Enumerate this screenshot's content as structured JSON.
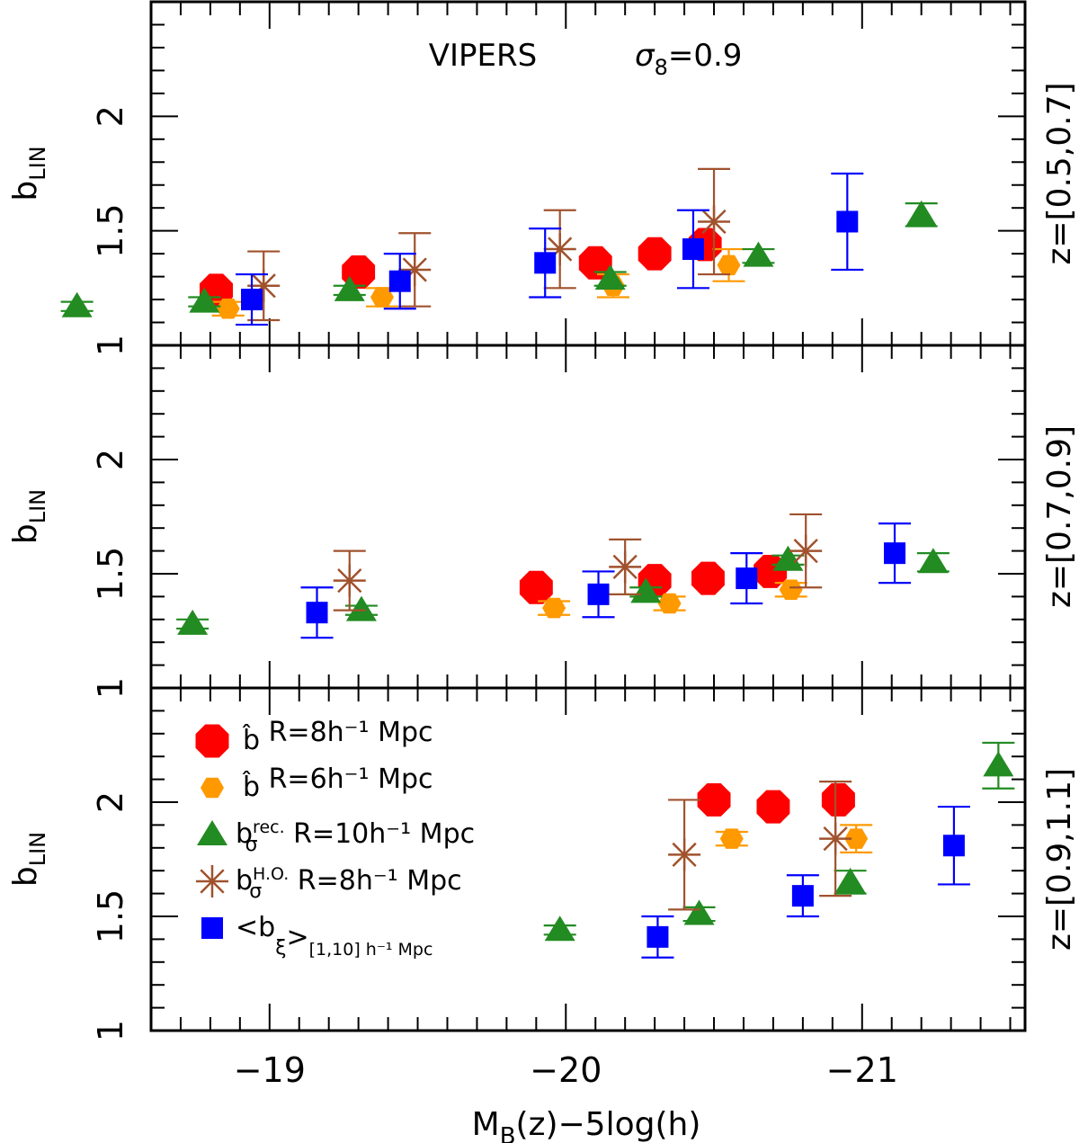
{
  "chart_data": {
    "type": "scatter",
    "title": "VIPERS",
    "annotation": {
      "symbol": "σ",
      "subscript": "8",
      "text": "=0.9"
    },
    "xlabel": {
      "main": "M",
      "sub": "B",
      "rest": "(z)−5log(h)"
    },
    "ylabel": {
      "main": "b",
      "sub": "LIN"
    },
    "xlim": [
      -18.6,
      -21.55
    ],
    "x_ticks": [
      -19,
      -20,
      -21
    ],
    "x_tick_labels": [
      "−19",
      "−20",
      "−21"
    ],
    "ylim": [
      1.0,
      2.5
    ],
    "y_ticks": [
      1,
      1.5,
      2
    ],
    "y_tick_labels": [
      "1",
      "1.5",
      "2"
    ],
    "legend": [
      {
        "series": "bhat8",
        "base": "b̂",
        "sup": "",
        "sub": "",
        "rest": "  R=8h⁻¹ Mpc",
        "tail": ""
      },
      {
        "series": "bhat6",
        "base": "b̂",
        "sup": "",
        "sub": "",
        "rest": "  R=6h⁻¹ Mpc",
        "tail": ""
      },
      {
        "series": "brec",
        "base": "b",
        "sup": "rec.",
        "sub": "σ",
        "rest": "  R=10h⁻¹ Mpc",
        "tail": ""
      },
      {
        "series": "bho",
        "base": "b",
        "sup": "H.O.",
        "sub": "σ",
        "rest": "  R=8h⁻¹ Mpc",
        "tail": ""
      },
      {
        "series": "bxi",
        "base": "<b",
        "sup": "",
        "sub": "ξ",
        "rest": ">",
        "tail": "[1,10] h⁻¹ Mpc"
      }
    ],
    "series_style": {
      "bhat8": {
        "name": "b̂ R=8h⁻¹ Mpc",
        "marker": "octagon",
        "color": "#ff0000"
      },
      "bhat6": {
        "name": "b̂ R=6h⁻¹ Mpc",
        "marker": "hexagon",
        "color": "#ff9900"
      },
      "brec": {
        "name": "b_σ^rec. R=10h⁻¹ Mpc",
        "marker": "triangle",
        "color": "#228b22"
      },
      "bho": {
        "name": "b_σ^H.O. R=8h⁻¹ Mpc",
        "marker": "asterisk",
        "color": "#a0522d"
      },
      "bxi": {
        "name": "<b_ξ>_[1,10] h⁻¹ Mpc",
        "marker": "square",
        "color": "#0000ff"
      }
    },
    "panels": [
      {
        "label": "z=[0.5,0.7]",
        "series": [
          {
            "id": "bhat8",
            "points": [
              {
                "x": -18.82,
                "y": 1.24,
                "err": 0
              },
              {
                "x": -19.3,
                "y": 1.32,
                "err": 0
              },
              {
                "x": -20.1,
                "y": 1.36,
                "err": 0
              },
              {
                "x": -20.3,
                "y": 1.4,
                "err": 0
              },
              {
                "x": -20.47,
                "y": 1.44,
                "err": 0
              }
            ]
          },
          {
            "id": "bhat6",
            "points": [
              {
                "x": -18.86,
                "y": 1.16,
                "err": 0.03
              },
              {
                "x": -19.38,
                "y": 1.21,
                "err": 0.04
              },
              {
                "x": -20.16,
                "y": 1.26,
                "err": 0.05
              },
              {
                "x": -20.55,
                "y": 1.35,
                "err": 0.07
              }
            ]
          },
          {
            "id": "brec",
            "points": [
              {
                "x": -18.35,
                "y": 1.17,
                "err": 0.02
              },
              {
                "x": -18.78,
                "y": 1.19,
                "err": 0.02
              },
              {
                "x": -19.27,
                "y": 1.24,
                "err": 0.02
              },
              {
                "x": -20.15,
                "y": 1.29,
                "err": 0.03
              },
              {
                "x": -20.65,
                "y": 1.39,
                "err": 0.03
              },
              {
                "x": -21.2,
                "y": 1.57,
                "err": 0.05
              }
            ]
          },
          {
            "id": "bho",
            "points": [
              {
                "x": -18.98,
                "y": 1.26,
                "err": 0.15
              },
              {
                "x": -19.49,
                "y": 1.33,
                "err": 0.16
              },
              {
                "x": -19.98,
                "y": 1.42,
                "err": 0.17
              },
              {
                "x": -20.5,
                "y": 1.54,
                "err": 0.23
              }
            ]
          },
          {
            "id": "bxi",
            "points": [
              {
                "x": -18.94,
                "y": 1.2,
                "err": 0.11
              },
              {
                "x": -19.44,
                "y": 1.28,
                "err": 0.12
              },
              {
                "x": -19.93,
                "y": 1.36,
                "err": 0.15
              },
              {
                "x": -20.43,
                "y": 1.42,
                "err": 0.17
              },
              {
                "x": -20.95,
                "y": 1.54,
                "err": 0.21
              }
            ]
          }
        ]
      },
      {
        "label": "z=[0.7,0.9]",
        "series": [
          {
            "id": "bhat8",
            "points": [
              {
                "x": -19.9,
                "y": 1.44,
                "err": 0
              },
              {
                "x": -20.3,
                "y": 1.47,
                "err": 0
              },
              {
                "x": -20.48,
                "y": 1.48,
                "err": 0
              },
              {
                "x": -20.69,
                "y": 1.51,
                "err": 0
              }
            ]
          },
          {
            "id": "bhat6",
            "points": [
              {
                "x": -19.96,
                "y": 1.35,
                "err": 0.03
              },
              {
                "x": -20.35,
                "y": 1.37,
                "err": 0.03
              },
              {
                "x": -20.76,
                "y": 1.43,
                "err": 0.03
              }
            ]
          },
          {
            "id": "brec",
            "points": [
              {
                "x": -18.74,
                "y": 1.28,
                "err": 0.02
              },
              {
                "x": -19.31,
                "y": 1.34,
                "err": 0.02
              },
              {
                "x": -20.27,
                "y": 1.42,
                "err": 0.02
              },
              {
                "x": -20.75,
                "y": 1.56,
                "err": 0.02
              },
              {
                "x": -21.24,
                "y": 1.55,
                "err": 0.04
              }
            ]
          },
          {
            "id": "bho",
            "points": [
              {
                "x": -19.27,
                "y": 1.47,
                "err": 0.13
              },
              {
                "x": -20.2,
                "y": 1.53,
                "err": 0.12
              },
              {
                "x": -20.81,
                "y": 1.6,
                "err": 0.16
              }
            ]
          },
          {
            "id": "bxi",
            "points": [
              {
                "x": -19.16,
                "y": 1.33,
                "err": 0.11
              },
              {
                "x": -20.11,
                "y": 1.41,
                "err": 0.1
              },
              {
                "x": -20.61,
                "y": 1.48,
                "err": 0.11
              },
              {
                "x": -21.11,
                "y": 1.59,
                "err": 0.13
              }
            ]
          }
        ]
      },
      {
        "label": "z=[0.9,1.1]",
        "series": [
          {
            "id": "bhat8",
            "points": [
              {
                "x": -20.5,
                "y": 2.01,
                "err": 0
              },
              {
                "x": -20.7,
                "y": 1.98,
                "err": 0
              },
              {
                "x": -20.92,
                "y": 2.01,
                "err": 0
              }
            ]
          },
          {
            "id": "bhat6",
            "points": [
              {
                "x": -20.56,
                "y": 1.84,
                "err": 0.03
              },
              {
                "x": -20.98,
                "y": 1.84,
                "err": 0.06
              }
            ]
          },
          {
            "id": "brec",
            "points": [
              {
                "x": -19.98,
                "y": 1.44,
                "err": 0.02
              },
              {
                "x": -20.45,
                "y": 1.51,
                "err": 0.03
              },
              {
                "x": -20.96,
                "y": 1.65,
                "err": 0.05
              },
              {
                "x": -21.46,
                "y": 2.16,
                "err": 0.1
              }
            ]
          },
          {
            "id": "bho",
            "points": [
              {
                "x": -20.4,
                "y": 1.77,
                "err": 0.24
              },
              {
                "x": -20.91,
                "y": 1.84,
                "err": 0.25
              }
            ]
          },
          {
            "id": "bxi",
            "points": [
              {
                "x": -20.31,
                "y": 1.41,
                "err": 0.09
              },
              {
                "x": -20.8,
                "y": 1.59,
                "err": 0.09
              },
              {
                "x": -21.31,
                "y": 1.81,
                "err": 0.17
              }
            ]
          }
        ]
      }
    ]
  }
}
